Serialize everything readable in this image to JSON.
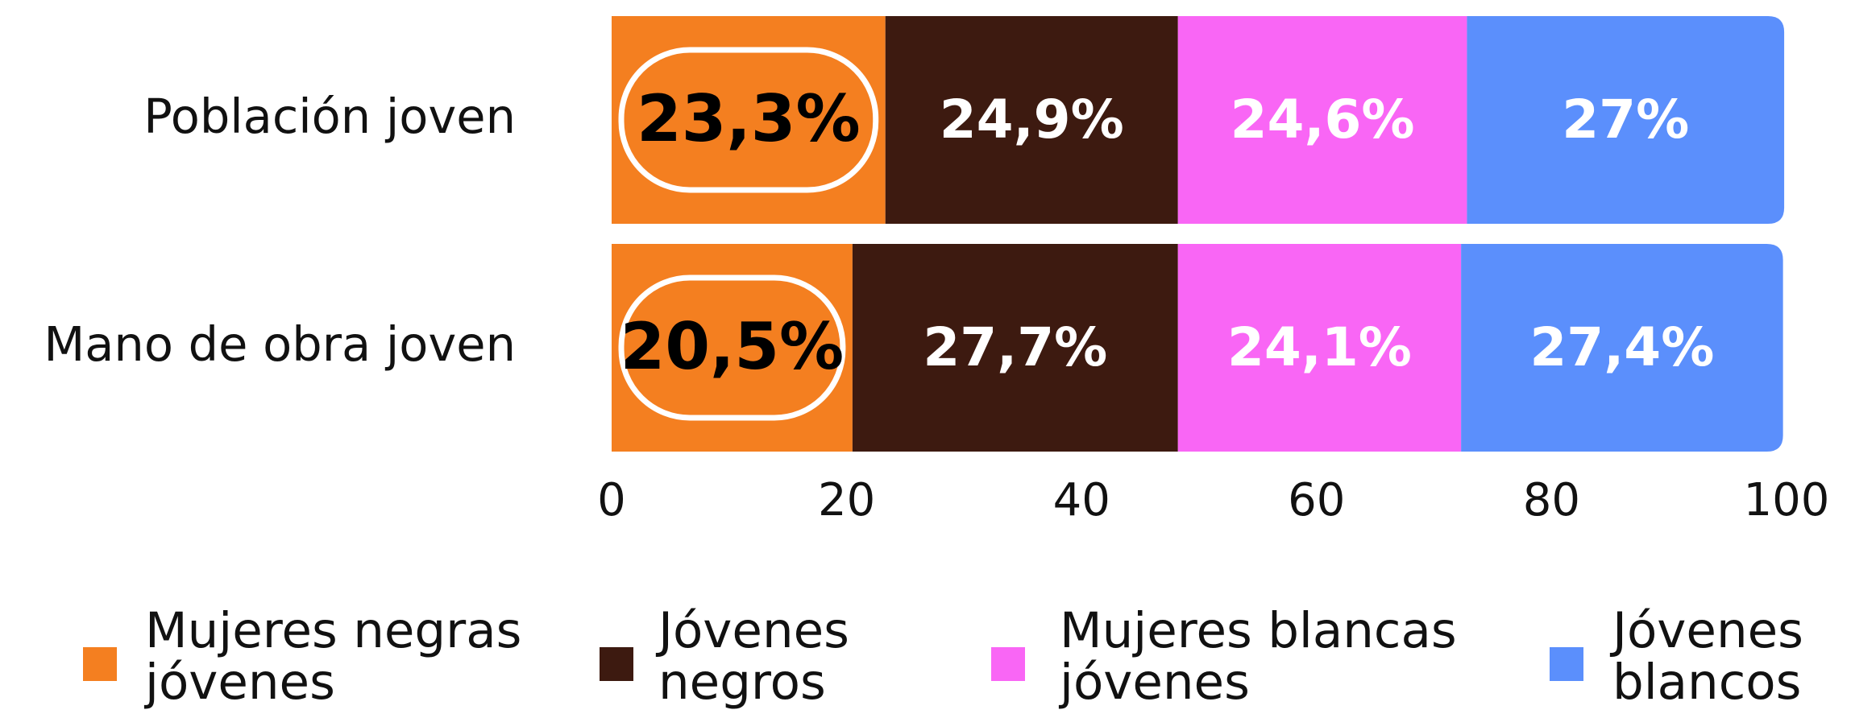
{
  "chart_data": {
    "type": "stacked_barh",
    "categories": [
      "Población joven",
      "Mano de obra joven"
    ],
    "series": [
      {
        "name": "Mujeres negras jóvenes",
        "color": "#f47f20",
        "label_color": "#000000",
        "highlight": true,
        "values": [
          23.3,
          20.5
        ],
        "value_labels": [
          "23,3%",
          "20,5%"
        ]
      },
      {
        "name": "Jóvenes negros",
        "color": "#3d1a10",
        "label_color": "#ffffff",
        "values": [
          24.9,
          27.7
        ],
        "value_labels": [
          "24,9%",
          "27,7%"
        ]
      },
      {
        "name": "Mujeres blancas jóvenes",
        "color": "#f966f5",
        "label_color": "#ffffff",
        "values": [
          24.6,
          24.1
        ],
        "value_labels": [
          "24,6%",
          "24,1%"
        ]
      },
      {
        "name": "Jóvenes blancos",
        "color": "#5b8ffc",
        "label_color": "#ffffff",
        "values": [
          27,
          27.4
        ],
        "value_labels": [
          "27%",
          "27,4%"
        ]
      }
    ],
    "xlim": [
      0,
      100
    ],
    "xticks": [
      0,
      20,
      40,
      60,
      80,
      100
    ],
    "legend": "bottom"
  }
}
